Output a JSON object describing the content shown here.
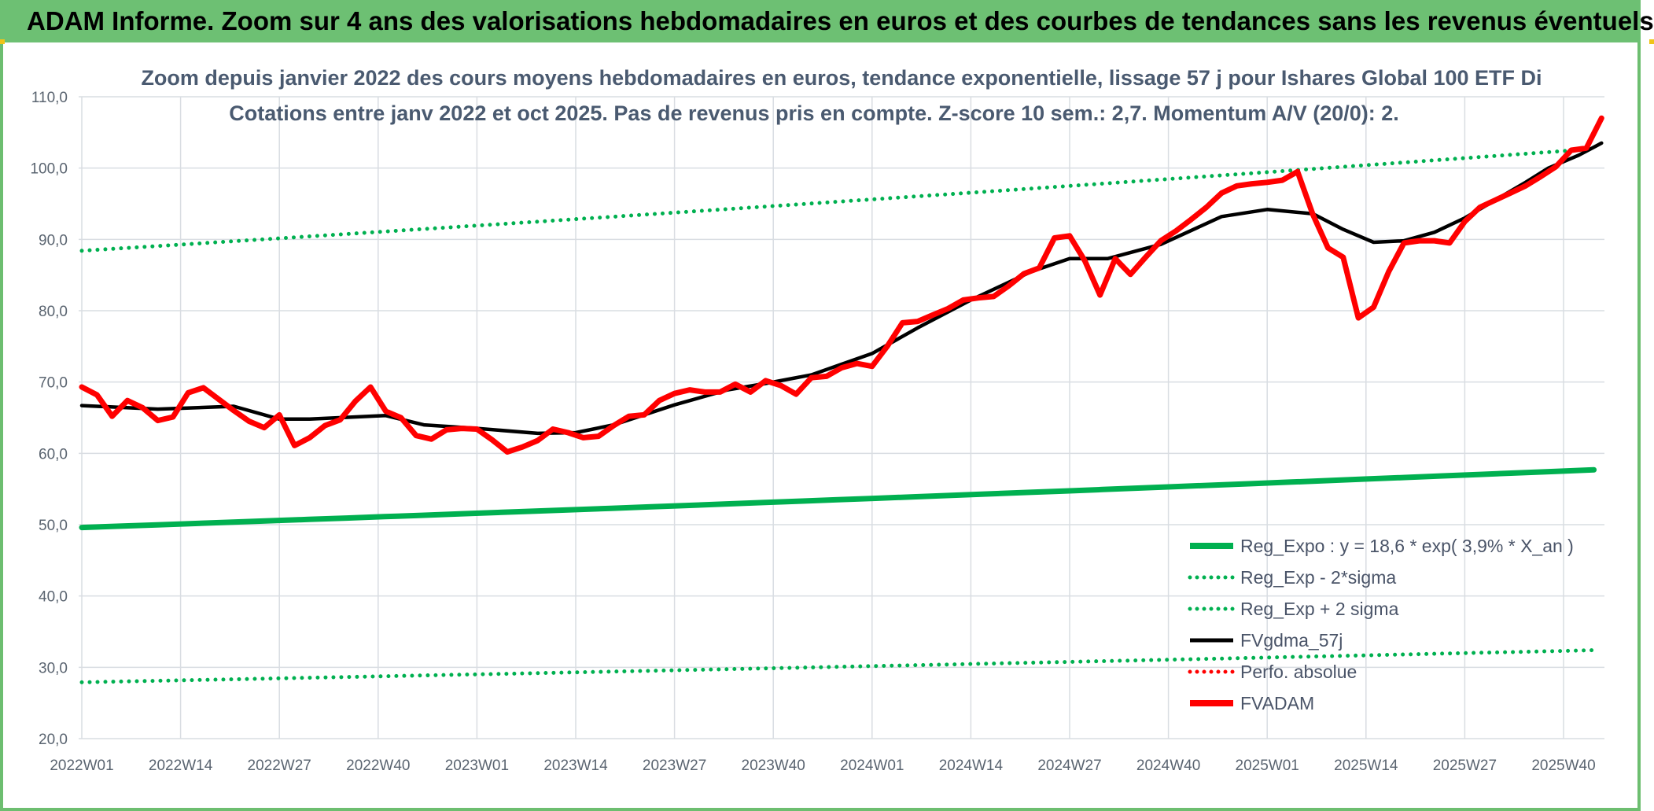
{
  "banner_title": "ADAM Informe. Zoom sur 4 ans des valorisations hebdomadaires en euros et des courbes de tendances sans les revenus éventuels",
  "chart_data": {
    "type": "line",
    "title_line1": "Zoom depuis janvier 2022 des cours moyens hebdomadaires en euros, tendance exponentielle, lissage 57 j pour Ishares Global 100 ETF Di",
    "title_line2": "Cotations entre janv 2022 et oct 2025. Pas de revenus pris en compte. Z-score 10 sem.: 2,7. Momentum A/V (20/0): 2.",
    "ylim": [
      20,
      110
    ],
    "y_ticks": [
      "20,0",
      "30,0",
      "40,0",
      "50,0",
      "60,0",
      "70,0",
      "80,0",
      "90,0",
      "100,0",
      "110,0"
    ],
    "x_ticks": [
      "2022W01",
      "2022W14",
      "2022W27",
      "2022W40",
      "2023W01",
      "2023W14",
      "2023W27",
      "2023W40",
      "2024W01",
      "2024W14",
      "2024W27",
      "2024W40",
      "2025W01",
      "2025W14",
      "2025W27",
      "2025W40"
    ],
    "grid": true,
    "legend_position": "bottom-right",
    "series": [
      {
        "name": "Reg_Expo : y = 18,6 * exp( 3,9% *  X_an )",
        "color": "#00b050",
        "style": "solid",
        "x": [
          0,
          199
        ],
        "values": [
          49.6,
          57.7
        ]
      },
      {
        "name": "Reg_Exp - 2*sigma",
        "color": "#00b050",
        "style": "dotted",
        "x": [
          0,
          199
        ],
        "values": [
          27.9,
          32.4
        ]
      },
      {
        "name": "Reg_Exp + 2 sigma",
        "color": "#00b050",
        "style": "dotted",
        "x": [
          0,
          199
        ],
        "values": [
          88.4,
          102.7
        ]
      },
      {
        "name": "FVgdma_57j",
        "color": "#000000",
        "style": "solid",
        "x": [
          0,
          10,
          20,
          26,
          30,
          40,
          45,
          52,
          60,
          65,
          70,
          78,
          85,
          90,
          96,
          104,
          110,
          117,
          125,
          130,
          135,
          142,
          150,
          156,
          162,
          166,
          170,
          174,
          178,
          182,
          186,
          190,
          193,
          197,
          200
        ],
        "values": [
          66.7,
          66.2,
          66.6,
          64.8,
          64.8,
          65.3,
          64.0,
          63.5,
          62.8,
          62.9,
          64.0,
          66.8,
          68.9,
          69.8,
          71.0,
          74.0,
          77.6,
          81.5,
          85.5,
          87.3,
          87.3,
          89.3,
          93.2,
          94.2,
          93.6,
          91.4,
          89.6,
          89.8,
          91.0,
          93.0,
          95.5,
          98.0,
          100.0,
          101.8,
          103.5
        ]
      },
      {
        "name": "Perfo. absolue",
        "color": "#ff0000",
        "style": "dotted",
        "x": [],
        "values": []
      },
      {
        "name": "FVADAM",
        "color": "#ff0000",
        "style": "solid",
        "x": [
          0,
          2,
          4,
          6,
          8,
          10,
          12,
          14,
          16,
          18,
          20,
          22,
          24,
          26,
          28,
          30,
          32,
          34,
          36,
          38,
          40,
          42,
          44,
          46,
          48,
          50,
          52,
          54,
          56,
          58,
          60,
          62,
          64,
          66,
          68,
          70,
          72,
          74,
          76,
          78,
          80,
          82,
          84,
          86,
          88,
          90,
          92,
          94,
          96,
          98,
          100,
          102,
          104,
          106,
          108,
          110,
          112,
          114,
          116,
          118,
          120,
          122,
          124,
          126,
          128,
          130,
          132,
          134,
          136,
          138,
          140,
          142,
          144,
          146,
          148,
          150,
          152,
          154,
          156,
          158,
          160,
          162,
          164,
          166,
          168,
          170,
          172,
          174,
          176,
          178,
          180,
          182,
          184,
          186,
          188,
          190,
          192,
          194,
          196,
          198,
          200
        ],
        "values": [
          69.3,
          68.2,
          65.2,
          67.4,
          66.4,
          64.6,
          65.1,
          68.5,
          69.2,
          67.6,
          66.0,
          64.5,
          63.6,
          65.4,
          61.1,
          62.2,
          63.9,
          64.7,
          67.3,
          69.3,
          65.9,
          65.0,
          62.5,
          62.0,
          63.3,
          63.5,
          63.4,
          61.9,
          60.2,
          60.9,
          61.8,
          63.4,
          62.9,
          62.2,
          62.4,
          63.9,
          65.2,
          65.4,
          67.4,
          68.4,
          68.9,
          68.6,
          68.6,
          69.7,
          68.6,
          70.2,
          69.5,
          68.3,
          70.6,
          70.8,
          72.0,
          72.6,
          72.2,
          75.0,
          78.3,
          78.5,
          79.4,
          80.3,
          81.5,
          81.8,
          82.0,
          83.5,
          85.2,
          86.0,
          90.2,
          90.5,
          87.0,
          82.2,
          87.3,
          85.1,
          87.5,
          89.8,
          91.2,
          92.8,
          94.5,
          96.5,
          97.5,
          97.8,
          98.0,
          98.3,
          99.5,
          93.5,
          88.8,
          87.5,
          79.0,
          80.5,
          85.5,
          89.5,
          89.8,
          89.8,
          89.5,
          92.5,
          94.5,
          95.5,
          96.5,
          97.5,
          98.8,
          100.2,
          102.5,
          102.8,
          107.0
        ]
      }
    ]
  }
}
